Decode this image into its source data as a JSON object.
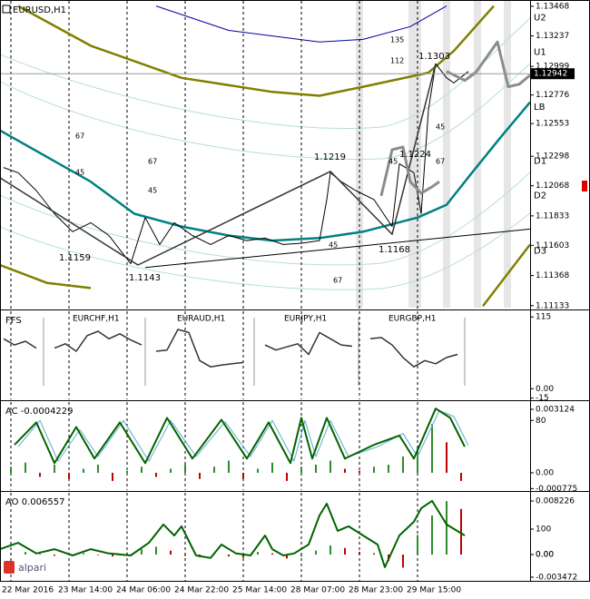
{
  "chart_data": [
    {
      "type": "line",
      "title": "EURUSD,H1",
      "xlim": [
        -3,
        143
      ],
      "xticks": [
        {
          "value": 0,
          "label": "22 Mar 2016"
        },
        {
          "value": 16,
          "label": "23 Mar 14:00"
        },
        {
          "value": 32,
          "label": "24 Mar 06:00"
        },
        {
          "value": 48,
          "label": "24 Mar 22:00"
        },
        {
          "value": 64,
          "label": "25 Mar 14:00"
        },
        {
          "value": 80,
          "label": "28 Mar 07:00"
        },
        {
          "value": 96,
          "label": "28 Mar 23:00"
        },
        {
          "value": 112,
          "label": "29 Mar 15:00"
        }
      ],
      "ylim": [
        1.1111,
        1.1351
      ],
      "yticks": [
        1.13468,
        1.13237,
        1.12999,
        1.12776,
        1.12553,
        1.12298,
        1.12068,
        1.11833,
        1.11603,
        1.11368,
        1.11133
      ],
      "last_price": 1.12942,
      "levels": [
        {
          "label": "U2",
          "value": 1.1338
        },
        {
          "label": "U1",
          "value": 1.1311
        },
        {
          "label": "LB",
          "value": 1.1268
        },
        {
          "label": "D1",
          "value": 1.1226
        },
        {
          "label": "D2",
          "value": 1.1199
        },
        {
          "label": "D3",
          "value": 1.1156
        }
      ],
      "annotations": [
        "1.1159",
        "1.1143",
        "1.1219",
        "1.1168",
        "1.1224",
        "1.1303",
        "67",
        "45",
        "67",
        "45",
        "135",
        "112",
        "45",
        "67",
        "45",
        "67",
        "45"
      ],
      "series": [
        {
          "color": "#0000a0",
          "width": 1,
          "x": [
            40,
            60,
            85,
            97,
            110,
            120
          ],
          "values": [
            1.1347,
            1.1328,
            1.1319,
            1.1321,
            1.1331,
            1.1347
          ]
        },
        {
          "color": "#808000",
          "width": 2.5,
          "x": [
            2,
            22,
            47,
            72,
            85,
            97,
            115,
            122,
            133
          ],
          "values": [
            1.1347,
            1.1316,
            1.1291,
            1.128,
            1.1277,
            1.1284,
            1.1295,
            1.1312,
            1.1347
          ]
        },
        {
          "color": "#808000",
          "width": 2.5,
          "x": [
            -3,
            10,
            22,
            25,
            130,
            143
          ],
          "values": [
            1.1145,
            1.1131,
            1.1127,
            null,
            1.1113,
            1.1161
          ]
        },
        {
          "color": "#008080",
          "width": 2.5,
          "x": [
            -3,
            22,
            34,
            47,
            60,
            72,
            85,
            97,
            112,
            120,
            127,
            135,
            143
          ],
          "values": [
            1.125,
            1.121,
            1.1185,
            1.1175,
            1.1168,
            1.1164,
            1.1166,
            1.1171,
            1.1182,
            1.1192,
            1.1217,
            1.1245,
            1.1272
          ]
        },
        {
          "color": "#000000",
          "width": 1,
          "x": [
            37,
            143
          ],
          "values": [
            1.1143,
            1.1173
          ]
        },
        {
          "color": "#000000",
          "width": 1,
          "x": [
            -2,
            2,
            7,
            12,
            17,
            22,
            27,
            33,
            37,
            41,
            45,
            50,
            55,
            60,
            65,
            70,
            75,
            80,
            85,
            87,
            88,
            91,
            95,
            100,
            105,
            107,
            111,
            113,
            115,
            117,
            120,
            122,
            126
          ],
          "values": [
            1.1221,
            1.1217,
            1.1203,
            1.1185,
            1.1171,
            1.1178,
            1.1168,
            1.1146,
            1.1182,
            1.1161,
            1.1178,
            1.1168,
            1.1161,
            1.1168,
            1.1164,
            1.1166,
            1.1161,
            1.1162,
            1.1164,
            1.1196,
            1.1217,
            1.121,
            1.1203,
            1.1196,
            1.1175,
            1.1224,
            1.1217,
            1.1185,
            1.1266,
            1.1302,
            1.1291,
            1.1287,
            1.1296
          ]
        },
        {
          "color": "#333333",
          "width": 1.5,
          "x": [
            -3,
            35,
            88,
            105,
            117
          ],
          "values": [
            1.1213,
            1.1145,
            1.1218,
            1.1169,
            1.1302
          ]
        },
        {
          "color": "#8c8c8c",
          "width": 3,
          "x": [
            102,
            105,
            108,
            110,
            113,
            116,
            118,
            119,
            120,
            125,
            128,
            134,
            137,
            140,
            143
          ],
          "values": [
            1.1199,
            1.1235,
            1.1237,
            1.121,
            1.1201,
            1.1206,
            1.121,
            null,
            1.1296,
            1.1289,
            1.1295,
            1.1319,
            1.1284,
            1.1286,
            1.1293
          ]
        }
      ]
    },
    {
      "type": "line",
      "title": "FFS",
      "pairs": [
        "EURCHF,H1",
        "EURAUD,H1",
        "EURJPY,H1",
        "EURGBP,H1"
      ],
      "ylim": [
        -17,
        124
      ],
      "yticks": [
        115,
        {
          "value": 0,
          "label": "0.00"
        },
        -15
      ],
      "series": [
        {
          "color": "#333333",
          "width": 1.5,
          "x": [
            -2,
            1,
            4,
            7,
            9,
            12,
            15,
            18,
            21,
            24,
            27,
            30,
            33,
            36,
            37,
            40,
            43,
            46,
            49,
            52,
            55,
            58,
            61,
            64,
            66,
            70,
            73,
            76,
            79,
            82,
            85,
            88,
            91,
            94,
            96,
            99,
            102,
            105,
            108,
            111,
            114,
            117,
            120,
            123
          ],
          "values": [
            80,
            70,
            76,
            65,
            null,
            65,
            72,
            60,
            85,
            92,
            80,
            88,
            78,
            70,
            null,
            60,
            62,
            95,
            90,
            45,
            35,
            38,
            40,
            42,
            null,
            70,
            62,
            67,
            72,
            55,
            90,
            80,
            70,
            68,
            null,
            80,
            82,
            70,
            50,
            35,
            45,
            40,
            50,
            55
          ]
        }
      ]
    },
    {
      "type": "line",
      "title": "AC -0.0004229",
      "ylim": [
        -0.00085,
        0.00348
      ],
      "yticks": [
        0.003124,
        {
          "value": 0,
          "label": "0.00"
        },
        -0.000775
      ],
      "y2lim": [
        -26,
        108
      ],
      "y2ticks": [
        80
      ],
      "series": [
        {
          "type": "bar",
          "up_color": "#2e8b2e",
          "down_color": "#c00000",
          "x": [
            0,
            4,
            8,
            12,
            16,
            20,
            24,
            28,
            32,
            36,
            40,
            44,
            48,
            52,
            56,
            60,
            64,
            68,
            72,
            76,
            80,
            84,
            88,
            92,
            96,
            100,
            104,
            108,
            112,
            116,
            120,
            124
          ],
          "values": [
            0.0003,
            0.0005,
            -0.0002,
            0.0004,
            -0.0003,
            0.0002,
            0.0004,
            -0.0004,
            0.0001,
            0.0003,
            -0.0002,
            0.0002,
            0.0004,
            -0.0003,
            0.0003,
            0.0006,
            -0.0003,
            0.0002,
            0.0005,
            -0.0004,
            0.0003,
            0.0004,
            0.0006,
            0.0002,
            0.0001,
            0.0003,
            0.0004,
            0.0008,
            0.0012,
            0.0024,
            0.0015,
            -0.0004
          ]
        },
        {
          "color": "#5fa8d3",
          "width": 1,
          "axis": "y2",
          "x": [
            2,
            8,
            13,
            19,
            24,
            31,
            38,
            44,
            51,
            59,
            66,
            72,
            78,
            81,
            84,
            88,
            93,
            101,
            108,
            112,
            118,
            122,
            126
          ],
          "values": [
            40,
            80,
            18,
            66,
            25,
            80,
            18,
            80,
            25,
            78,
            25,
            80,
            18,
            80,
            25,
            80,
            25,
            40,
            60,
            25,
            95,
            86,
            42
          ]
        },
        {
          "color": "#006400",
          "width": 2,
          "axis": "y2",
          "x": [
            1,
            7,
            12,
            18,
            23,
            30,
            37,
            43,
            50,
            58,
            65,
            71,
            77,
            80,
            83,
            87,
            92,
            100,
            107,
            111,
            117,
            121,
            125
          ],
          "values": [
            43,
            77,
            15,
            70,
            22,
            77,
            15,
            84,
            22,
            81,
            22,
            77,
            15,
            84,
            22,
            84,
            22,
            43,
            57,
            22,
            98,
            84,
            40
          ]
        }
      ]
    },
    {
      "type": "line",
      "title": "AO 0.006557",
      "ylim": [
        -0.00404,
        0.009481
      ],
      "yticks": [
        0.008226,
        {
          "value": 0,
          "label": "0.00"
        },
        -0.003472
      ],
      "y2lim": [
        -104,
        243
      ],
      "y2ticks": [
        100,
        {
          "value": 0,
          "label": "0.00"
        }
      ],
      "series": [
        {
          "type": "bar",
          "up_color": "#2e8b2e",
          "down_color": "#c00000",
          "x": [
            0,
            4,
            8,
            12,
            16,
            20,
            24,
            28,
            32,
            36,
            40,
            44,
            48,
            52,
            56,
            60,
            64,
            68,
            72,
            76,
            80,
            84,
            88,
            92,
            96,
            100,
            104,
            108,
            112,
            116,
            120,
            124
          ],
          "values": [
            0.0002,
            0.0004,
            0.0001,
            -0.0002,
            0.0001,
            0.0002,
            -0.0001,
            -0.0003,
            0.0003,
            0.0008,
            0.0012,
            0.0006,
            -0.0002,
            -0.0004,
            0.0001,
            -0.0003,
            -0.0005,
            0.0004,
            0.0002,
            -0.0006,
            -0.0003,
            0.0006,
            0.0014,
            0.001,
            0.0004,
            0.0002,
            -0.001,
            -0.002,
            0.003,
            0.006,
            0.0082,
            0.007
          ]
        },
        {
          "color": "#006400",
          "width": 2,
          "axis": "y2",
          "x": [
            -3,
            2,
            7,
            12,
            17,
            22,
            27,
            33,
            38,
            42,
            45,
            47,
            51,
            55,
            58,
            62,
            66,
            70,
            72,
            75,
            78,
            82,
            85,
            87,
            90,
            93,
            97,
            101,
            103,
            107,
            111,
            113,
            116,
            120,
            125
          ],
          "values": [
            21,
            46,
            4,
            21,
            -4,
            21,
            4,
            -4,
            46,
            118,
            75,
            111,
            -4,
            -14,
            39,
            4,
            -4,
            75,
            21,
            -4,
            4,
            39,
            154,
            200,
            93,
            111,
            75,
            39,
            -50,
            75,
            129,
            182,
            211,
            118,
            75
          ]
        }
      ]
    }
  ],
  "brand": "alpari"
}
